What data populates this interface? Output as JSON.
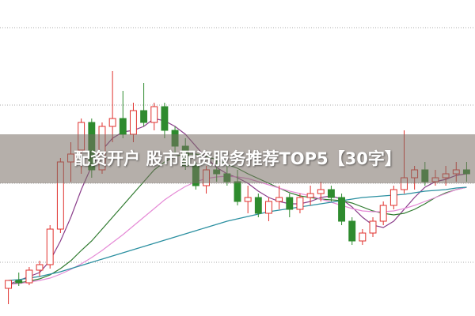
{
  "chart_data": {
    "type": "candlestick",
    "title": "配资开户 股市配资服务推荐TOP5【30字】",
    "ylim": [
      0,
      40
    ],
    "up_color": "#e0302c",
    "down_color": "#2e8b2e",
    "open": [
      3.5,
      4.5,
      4.2,
      5.8,
      6.5,
      11.0,
      19.5,
      21.0,
      24.5,
      18.5,
      24.0,
      25.0,
      23.0,
      26.0,
      24.5,
      26.5,
      23.5,
      21.5,
      19.0,
      16.5,
      18.5,
      18.0,
      17.0,
      14.5,
      15.0,
      13.0,
      14.5,
      15.0,
      13.5,
      15.0,
      15.5,
      16.0,
      15.0,
      12.0,
      9.5,
      10.5,
      12.0,
      14.0,
      16.0,
      17.5,
      18.5,
      17.0,
      17.5,
      18.0,
      18.5
    ],
    "high": [
      4.5,
      5.5,
      6.2,
      7.0,
      11.5,
      20.0,
      22.0,
      25.0,
      25.0,
      24.5,
      31.0,
      28.5,
      27.0,
      29.5,
      27.0,
      27.0,
      24.0,
      22.5,
      19.5,
      19.0,
      20.0,
      19.0,
      18.5,
      16.5,
      15.5,
      15.0,
      16.5,
      15.5,
      15.5,
      16.5,
      17.0,
      16.5,
      15.5,
      12.5,
      11.0,
      12.5,
      14.5,
      16.5,
      23.5,
      19.0,
      19.5,
      18.5,
      19.0,
      19.5,
      19.5
    ],
    "low": [
      1.5,
      3.8,
      3.9,
      5.0,
      6.0,
      10.5,
      17.0,
      18.0,
      17.5,
      18.0,
      22.0,
      22.5,
      22.0,
      24.0,
      23.5,
      22.5,
      20.5,
      18.5,
      16.0,
      15.5,
      17.0,
      16.5,
      14.0,
      13.0,
      12.5,
      12.0,
      13.5,
      12.5,
      13.0,
      14.0,
      14.5,
      14.5,
      11.5,
      9.0,
      9.0,
      10.0,
      11.5,
      13.5,
      15.5,
      16.0,
      16.5,
      16.5,
      16.5,
      17.0,
      17.0
    ],
    "close": [
      4.5,
      4.2,
      5.8,
      6.5,
      11.0,
      19.5,
      20.5,
      24.5,
      18.5,
      24.0,
      25.0,
      23.0,
      26.0,
      24.5,
      26.5,
      23.5,
      21.5,
      19.0,
      16.5,
      18.5,
      18.0,
      17.0,
      14.5,
      15.0,
      13.0,
      14.5,
      15.0,
      13.5,
      15.0,
      15.5,
      16.0,
      15.0,
      12.0,
      9.5,
      10.5,
      12.0,
      14.0,
      16.0,
      17.5,
      18.5,
      17.0,
      17.5,
      18.0,
      18.5,
      18.0
    ],
    "lines": [
      {
        "color": "#8a3d8a",
        "values": [
          4,
          4.5,
          5,
          5.5,
          7,
          9.5,
          12.5,
          16,
          19,
          21,
          22.5,
          23.3,
          23.5,
          24,
          25,
          24.7,
          24,
          23,
          21.5,
          20,
          18.8,
          18,
          17.5,
          16.8,
          15.8,
          15,
          14.5,
          14.2,
          14.2,
          14.5,
          15,
          15.2,
          14.8,
          13.8,
          12.5,
          11.5,
          11.2,
          12,
          13.5,
          15,
          16.3,
          17,
          17.3,
          17.8,
          18
        ]
      },
      {
        "color": "#2f7a2f",
        "values": [
          4,
          4.2,
          4.4,
          4.7,
          5.2,
          6,
          7,
          8.3,
          9.5,
          11,
          12.5,
          14,
          15.5,
          17,
          18.5,
          19.5,
          20.2,
          20.5,
          20.5,
          20.2,
          19.8,
          19.2,
          18.7,
          18,
          17.4,
          16.8,
          16.2,
          15.6,
          15.2,
          15,
          14.8,
          14.7,
          14.6,
          14.3,
          13.8,
          13.3,
          13,
          12.8,
          13,
          13.5,
          14.2,
          15,
          15.6,
          16,
          16.3
        ]
      },
      {
        "color": "#e58ad6",
        "values": [
          4,
          4.1,
          4.3,
          4.5,
          4.8,
          5.3,
          5.9,
          6.6,
          7.4,
          8.3,
          9.3,
          10.3,
          11.4,
          12.5,
          13.6,
          14.7,
          15.6,
          16.4,
          17,
          17.4,
          17.6,
          17.7,
          17.6,
          17.4,
          17,
          16.6,
          16.2,
          15.8,
          15.5,
          15.2,
          14.8,
          14.4,
          14,
          13.6,
          13.3,
          13.2,
          13.2,
          13.3,
          13.6,
          14,
          14.5,
          15,
          15.5,
          16,
          16.3
        ]
      },
      {
        "color": "#2a8fa0",
        "values": [
          4.5,
          4.6,
          4.8,
          5,
          5.3,
          5.6,
          6,
          6.4,
          6.8,
          7.2,
          7.6,
          8,
          8.4,
          8.8,
          9.2,
          9.6,
          10,
          10.4,
          10.8,
          11.2,
          11.6,
          12,
          12.3,
          12.6,
          12.9,
          13.2,
          13.4,
          13.6,
          13.8,
          14,
          14.2,
          14.4,
          14.6,
          14.8,
          15,
          15.1,
          15.2,
          15.3,
          15.4,
          15.6,
          15.8,
          15.9,
          16,
          16.2,
          16.3
        ]
      }
    ]
  }
}
